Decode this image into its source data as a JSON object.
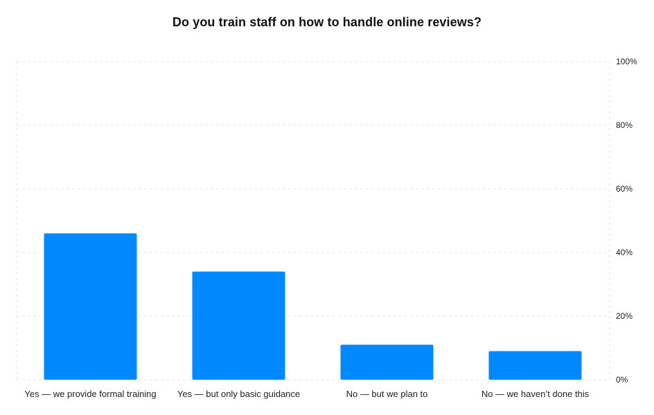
{
  "chart_data": {
    "type": "bar",
    "title": "Do you train staff on how to handle online reviews?",
    "categories": [
      "Yes — we provide formal training",
      "Yes — but only basic guidance",
      "No — but we plan to",
      "No — we haven’t done this"
    ],
    "values": [
      46,
      34,
      11,
      9
    ],
    "unit": "%",
    "ylim": [
      0,
      100
    ],
    "y_ticks": [
      "0%",
      "20%",
      "40%",
      "60%",
      "80%",
      "100%"
    ],
    "y_tick_values": [
      0,
      20,
      40,
      60,
      80,
      100
    ],
    "y_axis_position": "right",
    "grid": true,
    "legend": "none",
    "colors": {
      "bar": "#0088FF",
      "grid": "#E6E6E6",
      "text": "#222222"
    }
  }
}
